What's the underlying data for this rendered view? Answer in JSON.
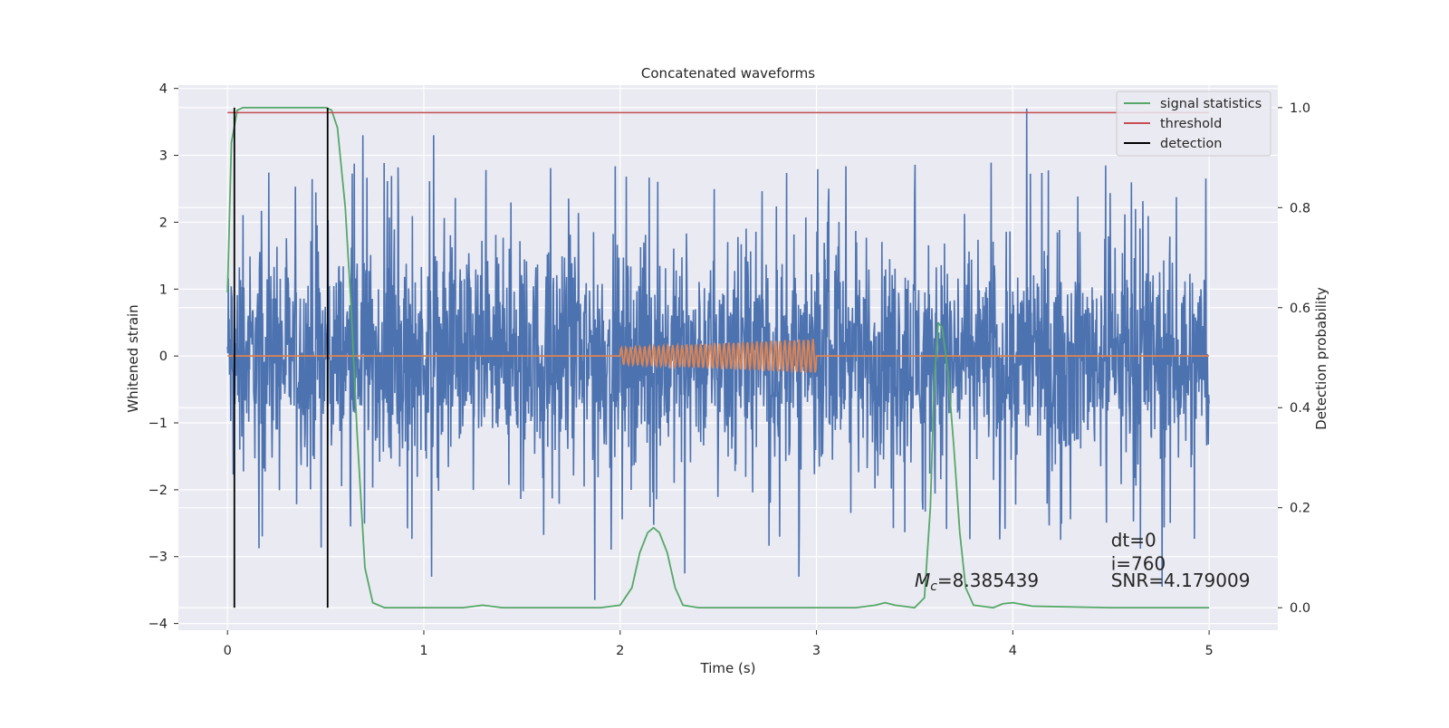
{
  "chart_data": {
    "type": "line",
    "title": "Concatenated waveforms",
    "xlabel": "Time (s)",
    "ylabel": "Whitened strain",
    "ylabel_right": "Detection probability",
    "xlim": [
      -0.25,
      5.35
    ],
    "ylim": [
      -4.1,
      4.05
    ],
    "ylim_right": [
      -0.045,
      1.045
    ],
    "x_ticks": [
      0,
      1,
      2,
      3,
      4,
      5
    ],
    "x_tick_labels": [
      "0",
      "1",
      "2",
      "3",
      "4",
      "5"
    ],
    "y_ticks": [
      -4,
      -3,
      -2,
      -1,
      0,
      1,
      2,
      3,
      4
    ],
    "y_tick_labels": [
      "−4",
      "−3",
      "−2",
      "−1",
      "0",
      "1",
      "2",
      "3",
      "4"
    ],
    "y2_ticks": [
      0.0,
      0.2,
      0.4,
      0.6,
      0.8,
      1.0
    ],
    "y2_tick_labels": [
      "0.0",
      "0.2",
      "0.4",
      "0.6",
      "0.8",
      "1.0"
    ],
    "grid": true,
    "legend_position": "top-right",
    "colors": {
      "background": "#eaeaf2",
      "grid": "#ffffff",
      "strain": "#4c72b0",
      "template": "#dd8452",
      "signal_statistics": "#55a868",
      "threshold": "#c44e52",
      "detection": "#000000"
    },
    "legend": [
      "signal statistics",
      "threshold",
      "detection"
    ],
    "noise_series": {
      "axis": "left",
      "x_range": [
        0,
        5
      ],
      "typical_amplitude": 0.75,
      "min_peak": -3.7,
      "max_peak": 3.7,
      "notable_peaks": [
        {
          "x": 0.69,
          "y": 3.3
        },
        {
          "x": 1.05,
          "y": 3.3
        },
        {
          "x": 1.04,
          "y": -3.3
        },
        {
          "x": 1.87,
          "y": -3.65
        },
        {
          "x": 2.33,
          "y": -3.25
        },
        {
          "x": 2.91,
          "y": -3.3
        },
        {
          "x": 4.07,
          "y": 3.7
        },
        {
          "x": 4.76,
          "y": -3.45
        }
      ]
    },
    "template_series": {
      "axis": "left",
      "x_range": [
        2.0,
        3.0
      ],
      "amplitude_start": 0.13,
      "amplitude_end": 0.26,
      "cycles": 42
    },
    "series": [
      {
        "name": "signal statistics",
        "axis": "right",
        "x": [
          0.0,
          0.02,
          0.05,
          0.08,
          0.12,
          0.2,
          0.3,
          0.4,
          0.5,
          0.53,
          0.56,
          0.6,
          0.63,
          0.66,
          0.7,
          0.74,
          0.8,
          1.0,
          1.2,
          1.3,
          1.4,
          1.6,
          1.8,
          1.9,
          2.0,
          2.06,
          2.1,
          2.14,
          2.17,
          2.2,
          2.24,
          2.28,
          2.32,
          2.4,
          2.6,
          3.0,
          3.2,
          3.3,
          3.35,
          3.4,
          3.5,
          3.55,
          3.58,
          3.6,
          3.62,
          3.64,
          3.67,
          3.7,
          3.73,
          3.76,
          3.8,
          3.9,
          3.95,
          4.0,
          4.1,
          4.5,
          5.0
        ],
        "y": [
          0.63,
          0.93,
          0.995,
          1.0,
          1.0,
          1.0,
          1.0,
          1.0,
          1.0,
          0.995,
          0.96,
          0.8,
          0.6,
          0.35,
          0.08,
          0.01,
          0.0,
          0.0,
          0.0,
          0.005,
          0.0,
          0.0,
          0.0,
          0.0,
          0.005,
          0.04,
          0.11,
          0.15,
          0.16,
          0.15,
          0.11,
          0.04,
          0.005,
          0.0,
          0.0,
          0.0,
          0.0,
          0.005,
          0.01,
          0.005,
          0.0,
          0.02,
          0.2,
          0.45,
          0.57,
          0.56,
          0.47,
          0.32,
          0.15,
          0.04,
          0.005,
          0.0,
          0.008,
          0.01,
          0.003,
          0.0,
          0.0
        ]
      },
      {
        "name": "threshold",
        "axis": "right",
        "x": [
          0,
          5
        ],
        "y": [
          0.99,
          0.99
        ]
      },
      {
        "name": "detection",
        "axis": "right",
        "type": "vlines",
        "x": [
          0.035,
          0.51
        ],
        "y_range": [
          0.0,
          1.0
        ]
      }
    ],
    "annotations": [
      {
        "text_prefix": "M",
        "subscript": "c",
        "text_suffix": "=8.385439",
        "x": 3.5,
        "y": -3.45
      },
      {
        "text": "dt=0",
        "x": 4.5,
        "y": -2.85
      },
      {
        "text": "i=760",
        "x": 4.5,
        "y": -3.2
      },
      {
        "text": "SNR=4.179009",
        "x": 4.5,
        "y": -3.45
      }
    ]
  }
}
